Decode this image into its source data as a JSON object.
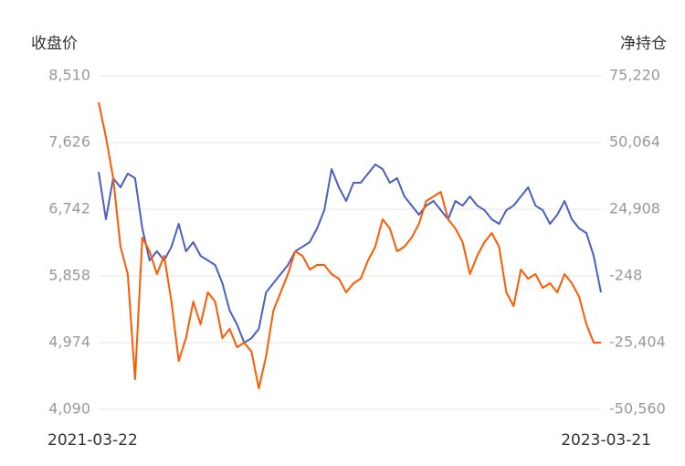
{
  "chart_data": {
    "type": "line",
    "y_axis_title": "收盘价",
    "y2_axis_title": "净持仓",
    "categories": [
      "2021-03-22",
      null,
      null,
      null,
      null,
      null,
      null,
      null,
      null,
      null,
      null,
      null,
      null,
      null,
      null,
      null,
      null,
      null,
      null,
      null,
      null,
      null,
      null,
      null,
      null,
      null,
      null,
      null,
      null,
      null,
      null,
      null,
      null,
      null,
      null,
      null,
      null,
      null,
      null,
      null,
      null,
      null,
      null,
      null,
      null,
      null,
      null,
      null,
      null,
      null,
      null,
      null,
      null,
      null,
      null,
      null,
      null,
      null,
      null,
      null,
      null,
      null,
      null,
      null,
      null,
      null,
      null,
      null,
      null,
      "2023-03-21"
    ],
    "series": [
      {
        "name": "收盘价",
        "color": "#4a5fc1",
        "axis": "y",
        "values": [
          7238,
          6609,
          7154,
          7033,
          7214,
          7154,
          6488,
          6064,
          6185,
          6064,
          6245,
          6548,
          6185,
          6306,
          6124,
          6064,
          6003,
          5761,
          5398,
          5216,
          4974,
          5034,
          5156,
          5640,
          5761,
          5882,
          6003,
          6185,
          6245,
          6306,
          6488,
          6730,
          7275,
          7033,
          6851,
          7093,
          7093,
          7214,
          7335,
          7275,
          7093,
          7154,
          6911,
          6790,
          6669,
          6790,
          6851,
          6730,
          6609,
          6851,
          6790,
          6911,
          6790,
          6730,
          6609,
          6548,
          6730,
          6790,
          6911,
          7033,
          6790,
          6730,
          6548,
          6669,
          6851,
          6609,
          6488,
          6427,
          6124,
          5640
        ]
      },
      {
        "name": "净持仓",
        "color": "#ff5a00",
        "axis": "y2",
        "values": [
          65230,
          52130,
          36625,
          10780,
          440,
          -39190,
          14230,
          9060,
          440,
          7330,
          -9900,
          -32300,
          -23680,
          -9900,
          -18510,
          -6450,
          -9900,
          -23680,
          -20230,
          -27130,
          -25400,
          -28850,
          -42630,
          -30570,
          -13340,
          -6450,
          440,
          9060,
          7330,
          2170,
          3890,
          3890,
          440,
          -1280,
          -6450,
          -3000,
          -1280,
          5610,
          10780,
          21120,
          17670,
          9060,
          10780,
          14230,
          19400,
          28010,
          29730,
          31460,
          21120,
          17670,
          12500,
          440,
          7330,
          12500,
          15950,
          10780,
          -6450,
          -11620,
          2170,
          -1280,
          440,
          -4730,
          -3000,
          -6450,
          440,
          -3000,
          -8170,
          -18510,
          -25400,
          -25400
        ]
      }
    ],
    "ylim": [
      4090,
      8510
    ],
    "yticks": [
      {
        "value": 4090,
        "label": "4,090"
      },
      {
        "value": 4974,
        "label": "4,974"
      },
      {
        "value": 5858,
        "label": "5,858"
      },
      {
        "value": 6742,
        "label": "6,742"
      },
      {
        "value": 7626,
        "label": "7,626"
      },
      {
        "value": 8510,
        "label": "8,510"
      }
    ],
    "y2lim": [
      -50560,
      75220
    ],
    "y2ticks": [
      {
        "value": -50560,
        "label": "-50,560"
      },
      {
        "value": -25404,
        "label": "-25,404"
      },
      -248,
      {
        "value": 24908,
        "label": "24,908"
      },
      {
        "value": 50064,
        "label": "50,064"
      },
      {
        "value": 75220,
        "label": "75,220"
      }
    ],
    "grid": true
  }
}
